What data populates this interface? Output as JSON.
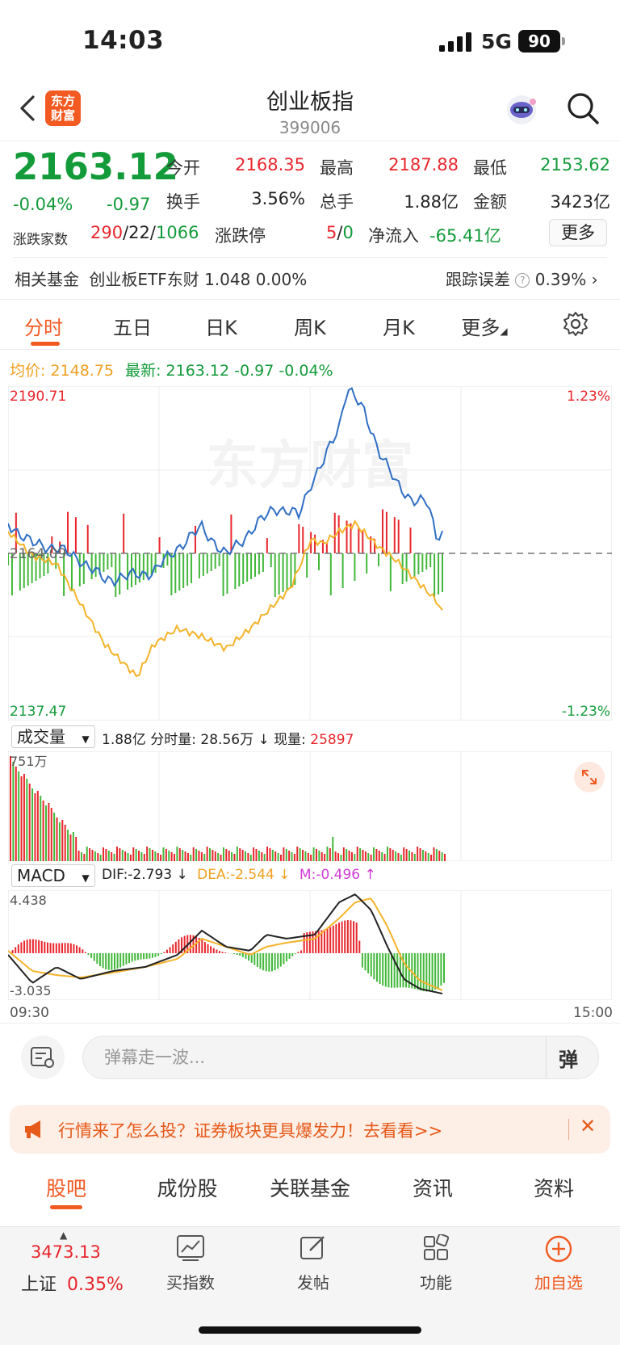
{
  "status": {
    "time": "14:03",
    "network": "5G",
    "battery": "90"
  },
  "header": {
    "logo": "东方\n财富",
    "title": "创业板指",
    "code": "399006"
  },
  "quote": {
    "price": "2163.12",
    "change_pct": "-0.04%",
    "change": "-0.97",
    "fields": [
      {
        "label": "今开",
        "value": "2168.35",
        "color": "red"
      },
      {
        "label": "最高",
        "value": "2187.88",
        "color": "red"
      },
      {
        "label": "最低",
        "value": "2153.62",
        "color": "green"
      },
      {
        "label": "换手",
        "value": "3.56%",
        "color": "dark"
      },
      {
        "label": "总手",
        "value": "1.88亿",
        "color": "dark"
      },
      {
        "label": "金额",
        "value": "3423亿",
        "color": "dark"
      }
    ],
    "breadth_label": "涨跌家数",
    "breadth_up": "290",
    "breadth_flat": "22",
    "breadth_down": "1066",
    "limit_label": "涨跌停",
    "limit_up": "5",
    "limit_down": "0",
    "inflow_label": "净流入",
    "inflow_value": "-65.41亿",
    "more_button": "更多"
  },
  "fund": {
    "label": "相关基金",
    "name": "创业板ETF东财",
    "price": "1.048",
    "pct": "0.00%",
    "tracking_label": "跟踪误差",
    "tracking_value": "0.39%"
  },
  "tabs": [
    "分时",
    "五日",
    "日K",
    "周K",
    "月K",
    "更多"
  ],
  "intraday": {
    "avg_label": "均价:",
    "avg_value": "2148.75",
    "latest_label": "最新:",
    "latest_value": "2163.12",
    "latest_change": "-0.97",
    "latest_pct": "-0.04%",
    "y_top": "2190.71",
    "y_mid": "2164.09",
    "y_bottom": "2137.47",
    "pct_top": "1.23%",
    "pct_bottom": "-1.23%",
    "watermark": "东方财富"
  },
  "volume": {
    "selector": "成交量",
    "total": "1.88亿",
    "period_label": "分时量:",
    "period_value": "28.56万",
    "now_label": "现量:",
    "now_value": "25897",
    "y_top": "751万"
  },
  "macd": {
    "selector": "MACD",
    "dif": "DIF:-2.793",
    "dea": "DEA:-2.544",
    "m": "M:-0.496",
    "y_top": "4.438",
    "y_bottom": "-3.035",
    "time_start": "09:30",
    "time_end": "15:00"
  },
  "comment": {
    "placeholder": "弹幕走一波...",
    "danmu": "弹"
  },
  "banner": {
    "text": "行情来了怎么投？证券板块更具爆发力！去看看>>"
  },
  "subtabs": [
    "股吧",
    "成份股",
    "关联基金",
    "资讯",
    "资料"
  ],
  "bottom": {
    "index_value": "3473.13",
    "index_name": "上证",
    "index_pct": "0.35%",
    "buttons": [
      "买指数",
      "发帖",
      "功能",
      "加自选"
    ]
  },
  "colors": {
    "up": "#e8262c",
    "down": "#139b3a",
    "accent": "#f25a22",
    "price_line": "#2f6fc4",
    "avg_line": "#f5b32a"
  }
}
